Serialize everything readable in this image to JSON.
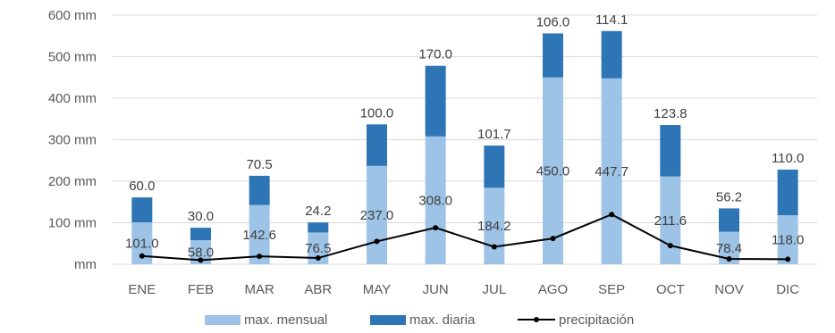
{
  "chart_data": {
    "type": "bar",
    "stacked": true,
    "categories": [
      "ENE",
      "FEB",
      "MAR",
      "ABR",
      "MAY",
      "JUN",
      "JUL",
      "AGO",
      "SEP",
      "OCT",
      "NOV",
      "DIC"
    ],
    "series": [
      {
        "name": "max. mensual",
        "type": "bar",
        "color": "#9dc3e6",
        "values": [
          101.0,
          58.0,
          142.6,
          76.5,
          237.0,
          308.0,
          184.2,
          450.0,
          447.7,
          211.6,
          78.4,
          118.0
        ],
        "labels": [
          "101.0",
          "58.0",
          "142.6",
          "76.5",
          "237.0",
          "308.0",
          "184.2",
          "450.0",
          "447.7",
          "211.6",
          "78.4",
          "118.0"
        ]
      },
      {
        "name": "max. diaria",
        "type": "bar",
        "color": "#2e75b6",
        "values": [
          60.0,
          30.0,
          70.5,
          24.2,
          100.0,
          170.0,
          101.7,
          106.0,
          114.1,
          123.8,
          56.2,
          110.0
        ],
        "labels": [
          "60.0",
          "30.0",
          "70.5",
          "24.2",
          "100.0",
          "170.0",
          "101.7",
          "106.0",
          "114.1",
          "123.8",
          "56.2",
          "110.0"
        ]
      },
      {
        "name": "precipitación",
        "type": "line",
        "color": "#000000",
        "values": [
          20,
          10,
          19,
          15,
          55,
          88,
          42,
          62,
          120,
          45,
          13,
          12
        ]
      }
    ],
    "yticks": [
      "mm",
      "100 mm",
      "200 mm",
      "300 mm",
      "400 mm",
      "500 mm",
      "600 mm"
    ],
    "ylim": [
      0,
      600
    ],
    "grid": true,
    "legend_position": "bottom",
    "title": "",
    "xlabel": "",
    "ylabel": ""
  }
}
